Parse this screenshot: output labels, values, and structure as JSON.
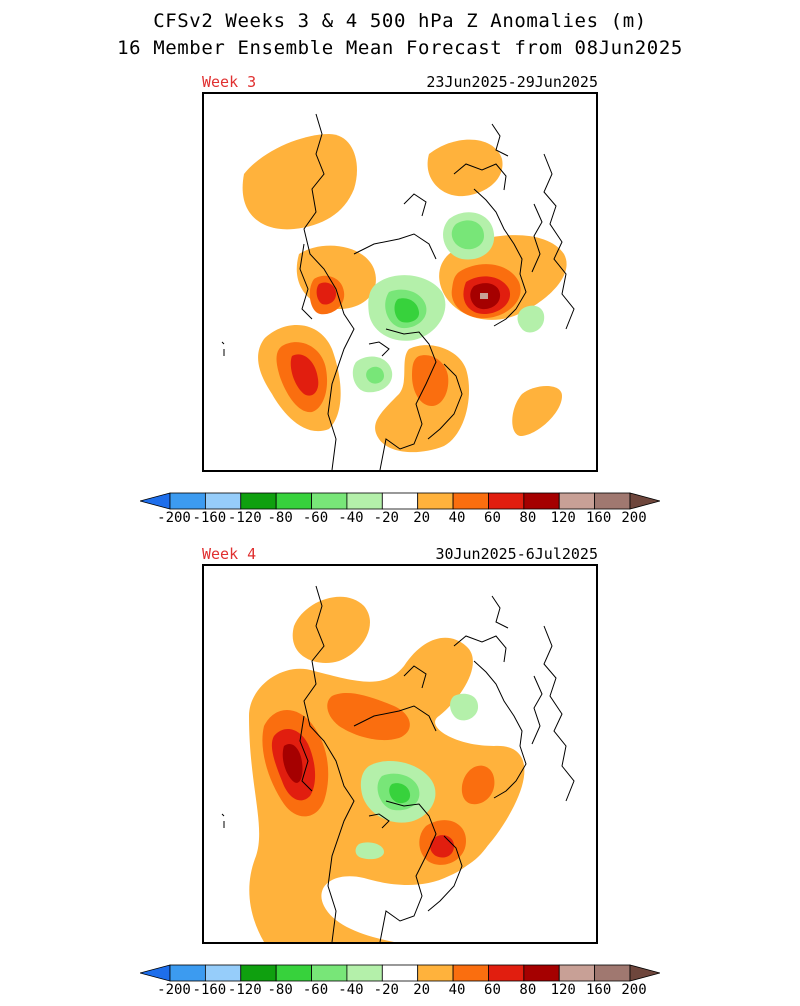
{
  "header": {
    "title": "CFSv2 Weeks 3 & 4 500 hPa Z Anomalies (m)",
    "subtitle": "16 Member Ensemble Mean Forecast from 08Jun2025"
  },
  "panels": [
    {
      "label": "Week 3",
      "dates": "23Jun2025-29Jun2025"
    },
    {
      "label": "Week 4",
      "dates": "30Jun2025-6Jul2025"
    }
  ],
  "colorbar": {
    "tick_labels": [
      "-200",
      "-160",
      "-120",
      "-80",
      "-60",
      "-40",
      "-20",
      "20",
      "40",
      "60",
      "80",
      "120",
      "160",
      "200"
    ],
    "colors": [
      "#1e6eeb",
      "#3c9bf0",
      "#96cdfa",
      "#0fa00f",
      "#37d23c",
      "#78e678",
      "#b4f0aa",
      "#ffffff",
      "#ffb23c",
      "#fa6e0f",
      "#e11e0f",
      "#a50000",
      "#c8a096",
      "#a07870",
      "#6e463c"
    ]
  },
  "colors": {
    "week_label": "#e03030"
  }
}
